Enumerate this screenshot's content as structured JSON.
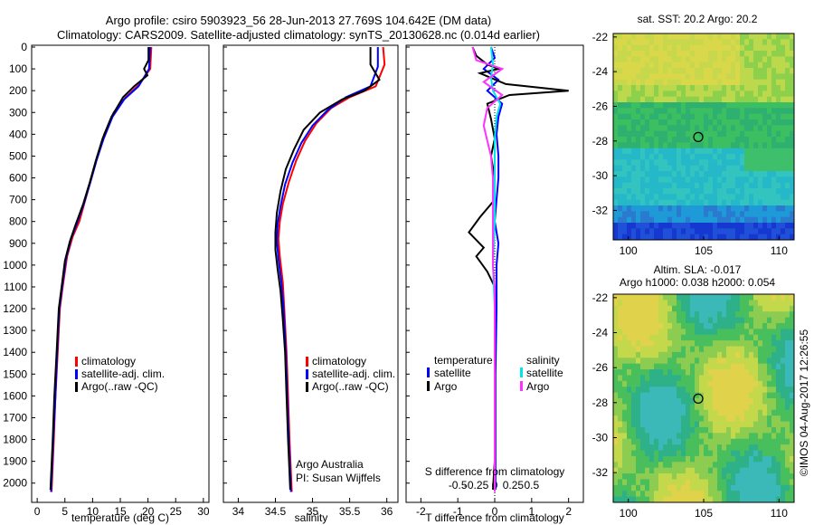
{
  "header": {
    "line1": "Argo profile: csiro 5903923_56 28-Jun-2013 27.769S 104.642E (DM data)",
    "line2": "Climatology: CARS2009. Satellite-adjusted climatology: synTS_20130628.nc (0.014d earlier)"
  },
  "side_stamp": "©IMOS 04-Aug-2017 12:26:55",
  "colors": {
    "climatology": "#ff0000",
    "satellite": "#0000ff",
    "argo": "#000000",
    "sal_satellite": "#00e5e5",
    "sal_argo": "#ff33ff"
  },
  "depth_ticks": [
    0,
    100,
    200,
    300,
    400,
    500,
    600,
    700,
    800,
    900,
    1000,
    1100,
    1200,
    1300,
    1400,
    1500,
    1600,
    1700,
    1800,
    1900,
    2000
  ],
  "chart_data": [
    {
      "type": "line",
      "id": "temperature",
      "xlabel": "temperature (deg C)",
      "xlim": [
        -1,
        31
      ],
      "ylim": [
        0,
        2080
      ],
      "xticks": [
        "0",
        "5",
        "10",
        "15",
        "20",
        "25",
        "30"
      ],
      "legend": [
        "climatology",
        "satellite-adj. clim.",
        "Argo(..raw -QC)"
      ],
      "series": [
        {
          "name": "climatology",
          "points": [
            [
              20.6,
              0
            ],
            [
              20.4,
              100
            ],
            [
              18.5,
              170
            ],
            [
              16,
              230
            ],
            [
              13.8,
              300
            ],
            [
              12.1,
              400
            ],
            [
              10.9,
              500
            ],
            [
              9.8,
              600
            ],
            [
              8.7,
              700
            ],
            [
              7.6,
              800
            ],
            [
              6.4,
              870
            ],
            [
              5.4,
              960
            ],
            [
              4.6,
              1100
            ],
            [
              4.1,
              1200
            ],
            [
              3.7,
              1400
            ],
            [
              3.3,
              1600
            ],
            [
              3.0,
              1800
            ],
            [
              2.6,
              2040
            ]
          ]
        },
        {
          "name": "satellite-adj. clim.",
          "points": [
            [
              20.4,
              0
            ],
            [
              20.2,
              100
            ],
            [
              18.3,
              180
            ],
            [
              15.7,
              240
            ],
            [
              13.6,
              320
            ],
            [
              12.0,
              420
            ],
            [
              10.7,
              520
            ],
            [
              9.6,
              620
            ],
            [
              8.4,
              720
            ],
            [
              7.3,
              800
            ],
            [
              6.1,
              880
            ],
            [
              5.2,
              970
            ],
            [
              4.5,
              1100
            ],
            [
              4.0,
              1200
            ],
            [
              3.6,
              1400
            ],
            [
              3.3,
              1600
            ],
            [
              2.9,
              1800
            ],
            [
              2.5,
              2040
            ]
          ]
        },
        {
          "name": "Argo(..raw -QC)",
          "points": [
            [
              20.1,
              0
            ],
            [
              20.1,
              60
            ],
            [
              19.3,
              100
            ],
            [
              19.9,
              130
            ],
            [
              17.5,
              180
            ],
            [
              15.5,
              230
            ],
            [
              13.4,
              320
            ],
            [
              11.8,
              420
            ],
            [
              10.6,
              520
            ],
            [
              9.5,
              620
            ],
            [
              8.3,
              720
            ],
            [
              7.0,
              810
            ],
            [
              5.9,
              890
            ],
            [
              5.0,
              980
            ],
            [
              4.4,
              1100
            ],
            [
              3.9,
              1200
            ],
            [
              3.5,
              1400
            ],
            [
              3.1,
              1600
            ],
            [
              2.8,
              1800
            ],
            [
              2.4,
              2030
            ]
          ]
        }
      ]
    },
    {
      "type": "line",
      "id": "salinity",
      "xlabel": "salinity",
      "xlim": [
        33.8,
        36.15
      ],
      "ylim": [
        0,
        2080
      ],
      "xticks": [
        "34",
        "34.5",
        "35",
        "35.5",
        "36"
      ],
      "legend": [
        "climatology",
        "satellite-adj. clim.",
        "Argo(..raw -QC)"
      ],
      "annotation": [
        "Argo Australia",
        "PI: Susan Wijffels"
      ],
      "series": [
        {
          "name": "climatology",
          "points": [
            [
              35.95,
              0
            ],
            [
              35.97,
              80
            ],
            [
              35.85,
              180
            ],
            [
              35.5,
              230
            ],
            [
              35.25,
              280
            ],
            [
              35.05,
              350
            ],
            [
              34.9,
              430
            ],
            [
              34.78,
              520
            ],
            [
              34.68,
              620
            ],
            [
              34.6,
              720
            ],
            [
              34.56,
              800
            ],
            [
              34.54,
              880
            ],
            [
              34.56,
              960
            ],
            [
              34.6,
              1080
            ],
            [
              34.62,
              1200
            ],
            [
              34.65,
              1400
            ],
            [
              34.67,
              1600
            ],
            [
              34.69,
              1800
            ],
            [
              34.72,
              2040
            ]
          ]
        },
        {
          "name": "satellite-adj. clim.",
          "points": [
            [
              35.88,
              0
            ],
            [
              35.88,
              90
            ],
            [
              35.78,
              180
            ],
            [
              35.45,
              230
            ],
            [
              35.2,
              290
            ],
            [
              35.0,
              360
            ],
            [
              34.85,
              440
            ],
            [
              34.73,
              530
            ],
            [
              34.63,
              630
            ],
            [
              34.57,
              730
            ],
            [
              34.53,
              810
            ],
            [
              34.52,
              890
            ],
            [
              34.54,
              970
            ],
            [
              34.58,
              1080
            ],
            [
              34.61,
              1200
            ],
            [
              34.64,
              1400
            ],
            [
              34.66,
              1600
            ],
            [
              34.68,
              1800
            ],
            [
              34.71,
              2040
            ]
          ]
        },
        {
          "name": "Argo(..raw -QC)",
          "points": [
            [
              35.78,
              0
            ],
            [
              35.78,
              80
            ],
            [
              35.9,
              150
            ],
            [
              35.7,
              200
            ],
            [
              35.4,
              240
            ],
            [
              35.1,
              300
            ],
            [
              34.88,
              380
            ],
            [
              34.75,
              470
            ],
            [
              34.64,
              560
            ],
            [
              34.57,
              660
            ],
            [
              34.52,
              760
            ],
            [
              34.5,
              850
            ],
            [
              34.5,
              930
            ],
            [
              34.53,
              1020
            ],
            [
              34.57,
              1120
            ],
            [
              34.6,
              1250
            ],
            [
              34.63,
              1400
            ],
            [
              34.65,
              1600
            ],
            [
              34.67,
              1800
            ],
            [
              34.7,
              2030
            ]
          ]
        }
      ]
    },
    {
      "type": "line",
      "id": "difference",
      "xlabel": "T difference from climatology",
      "xlabel2": "S difference from climatology",
      "xlim": [
        -2.4,
        2.4
      ],
      "ylim": [
        0,
        2080
      ],
      "xticks": [
        "-2",
        "-1",
        "0",
        "1",
        "2"
      ],
      "xticks2": [
        "-0.5",
        "-0.25",
        "0",
        "0.25",
        "0.5"
      ],
      "legend_titles": [
        "temperature",
        "salinity"
      ],
      "legend": [
        "satellite",
        "Argo",
        "satellite",
        "Argo"
      ],
      "series": [
        {
          "name": "satellite",
          "group": "temperature",
          "points": [
            [
              -0.1,
              0
            ],
            [
              0,
              50
            ],
            [
              -0.3,
              100
            ],
            [
              0.1,
              150
            ],
            [
              -0.2,
              200
            ],
            [
              0.2,
              260
            ],
            [
              0.1,
              320
            ],
            [
              0.05,
              400
            ],
            [
              0.1,
              500
            ],
            [
              0.1,
              600
            ],
            [
              0.05,
              700
            ],
            [
              0,
              800
            ],
            [
              0.1,
              900
            ],
            [
              0.05,
              1000
            ],
            [
              0.05,
              1200
            ],
            [
              0.02,
              1500
            ],
            [
              0.02,
              1800
            ],
            [
              0.02,
              2030
            ]
          ]
        },
        {
          "name": "Argo",
          "group": "temperature",
          "points": [
            [
              -0.6,
              0
            ],
            [
              -0.5,
              40
            ],
            [
              -0.2,
              80
            ],
            [
              0.1,
              100
            ],
            [
              -0.4,
              120
            ],
            [
              0.3,
              170
            ],
            [
              2.0,
              200
            ],
            [
              0.4,
              220
            ],
            [
              -0.2,
              260
            ],
            [
              -0.1,
              330
            ],
            [
              0,
              420
            ],
            [
              -0.1,
              500
            ],
            [
              0,
              600
            ],
            [
              0,
              700
            ],
            [
              -0.4,
              780
            ],
            [
              -0.7,
              850
            ],
            [
              -0.3,
              920
            ],
            [
              -0.5,
              960
            ],
            [
              -0.2,
              1030
            ],
            [
              0,
              1100
            ],
            [
              0,
              1300
            ],
            [
              0,
              1600
            ],
            [
              0,
              1900
            ],
            [
              -0.05,
              2030
            ]
          ]
        },
        {
          "name": "satellite",
          "group": "salinity",
          "points": [
            [
              -0.1,
              0
            ],
            [
              -0.05,
              80
            ],
            [
              -0.1,
              140
            ],
            [
              -0.05,
              200
            ],
            [
              0.15,
              260
            ],
            [
              0.05,
              320
            ],
            [
              0,
              420
            ],
            [
              0,
              600
            ],
            [
              0,
              800
            ],
            [
              -0.05,
              1000
            ],
            [
              0,
              1200
            ],
            [
              0,
              1500
            ],
            [
              0,
              1800
            ],
            [
              0,
              2040
            ]
          ]
        },
        {
          "name": "Argo",
          "group": "salinity",
          "points": [
            [
              -0.6,
              0
            ],
            [
              -0.5,
              60
            ],
            [
              0.2,
              100
            ],
            [
              -0.3,
              160
            ],
            [
              0.2,
              220
            ],
            [
              -0.2,
              280
            ],
            [
              -0.3,
              360
            ],
            [
              -0.2,
              430
            ],
            [
              -0.1,
              500
            ],
            [
              -0.05,
              600
            ],
            [
              -0.05,
              800
            ],
            [
              -0.05,
              1000
            ],
            [
              0,
              1100
            ],
            [
              0,
              1400
            ],
            [
              0,
              1800
            ],
            [
              0,
              2040
            ]
          ]
        }
      ]
    },
    {
      "type": "heatmap",
      "id": "sst_map",
      "title": "sat. SST: 20.2  Argo: 20.2",
      "xlim": [
        99,
        111
      ],
      "ylim": [
        -33.7,
        -21.8
      ],
      "xticks": [
        "100",
        "105",
        "110"
      ],
      "yticks": [
        "-22",
        "-24",
        "-26",
        "-28",
        "-30",
        "-32"
      ],
      "marker": {
        "lon": 104.642,
        "lat": -27.769
      }
    },
    {
      "type": "heatmap",
      "id": "sla_map",
      "title": "Altim. SLA: -0.017",
      "title2": "Argo h1000: 0.038  h2000: 0.054",
      "xlim": [
        99,
        111
      ],
      "ylim": [
        -33.7,
        -21.8
      ],
      "xticks": [
        "100",
        "105",
        "110"
      ],
      "yticks": [
        "-22",
        "-24",
        "-26",
        "-28",
        "-30",
        "-32"
      ],
      "marker": {
        "lon": 104.642,
        "lat": -27.769
      }
    }
  ]
}
